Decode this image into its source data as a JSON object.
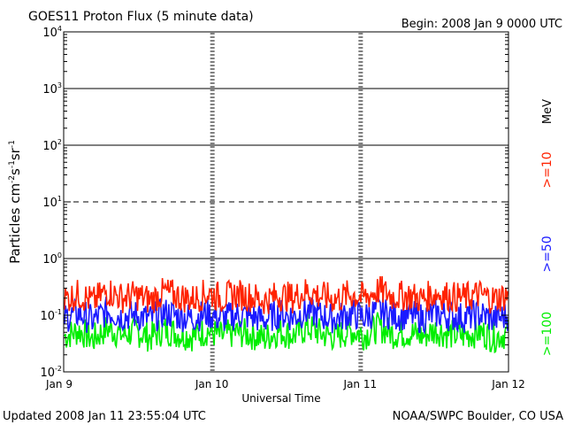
{
  "header": {
    "title": "GOES11 Proton Flux (5 minute data)",
    "begin": "Begin: 2008 Jan 9 0000 UTC"
  },
  "footer": {
    "updated": "Updated 2008 Jan 11 23:55:04 UTC",
    "credit": "NOAA/SWPC Boulder, CO USA"
  },
  "colors": {
    "ge10": "#ff2200",
    "ge50": "#1a1aff",
    "ge100": "#00ee00",
    "axis": "#000000"
  },
  "chart_data": {
    "type": "line",
    "title": "GOES11 Proton Flux (5 minute data)",
    "xlabel": "Universal Time",
    "ylabel_main": "Particles cm",
    "ylabel_parts": [
      "-2",
      "s",
      "-1",
      "sr",
      "-1"
    ],
    "yscale": "log",
    "ylim_exp": [
      -2,
      4
    ],
    "y_tick_labels": [
      {
        "exp": 4,
        "base": "10",
        "sup": "4"
      },
      {
        "exp": 3,
        "base": "10",
        "sup": "3"
      },
      {
        "exp": 2,
        "base": "10",
        "sup": "2"
      },
      {
        "exp": 1,
        "base": "10",
        "sup": "1"
      },
      {
        "exp": 0,
        "base": "10",
        "sup": "0"
      },
      {
        "exp": -1,
        "base": "10",
        "sup": "-1"
      },
      {
        "exp": -2,
        "base": "10",
        "sup": "-2"
      }
    ],
    "x_tick_labels": [
      "Jan 9",
      "Jan 10",
      "Jan 11",
      "Jan 12"
    ],
    "xlim": [
      "2008-01-09 00:00",
      "2008-01-12 00:00"
    ],
    "reference_lines": [
      {
        "value": 1000,
        "style": "solid"
      },
      {
        "value": 100,
        "style": "solid"
      },
      {
        "value": 10,
        "style": "dashed"
      },
      {
        "value": 1,
        "style": "solid"
      }
    ],
    "right_labels": {
      "unit": "MeV",
      "ge10": ">=10",
      "ge50": ">=50",
      "ge100": ">=100"
    },
    "series": [
      {
        "name": ">=10",
        "color": "#ff2200",
        "values": [
          0.18,
          0.22,
          0.16,
          0.25,
          0.19,
          0.21,
          0.17,
          0.24,
          0.2,
          0.18,
          0.23,
          0.19,
          0.22,
          0.2,
          0.17,
          0.21,
          0.19,
          0.25,
          0.2,
          0.18,
          0.22,
          0.19,
          0.26,
          0.2,
          0.21,
          0.18,
          0.23,
          0.2,
          0.19,
          0.22,
          0.18,
          0.21
        ]
      },
      {
        "name": ">=50",
        "color": "#1a1aff",
        "values": [
          0.085,
          0.1,
          0.075,
          0.11,
          0.09,
          0.095,
          0.08,
          0.105,
          0.09,
          0.085,
          0.1,
          0.08,
          0.095,
          0.09,
          0.078,
          0.1,
          0.088,
          0.11,
          0.09,
          0.082,
          0.1,
          0.087,
          0.115,
          0.09,
          0.095,
          0.083,
          0.1,
          0.09,
          0.086,
          0.098,
          0.08,
          0.092
        ]
      },
      {
        "name": ">=100",
        "color": "#00ee00",
        "values": [
          0.04,
          0.05,
          0.035,
          0.055,
          0.042,
          0.048,
          0.038,
          0.052,
          0.044,
          0.04,
          0.05,
          0.039,
          0.047,
          0.043,
          0.036,
          0.049,
          0.041,
          0.056,
          0.044,
          0.039,
          0.05,
          0.042,
          0.058,
          0.044,
          0.046,
          0.04,
          0.051,
          0.043,
          0.041,
          0.048,
          0.038,
          0.045
        ]
      }
    ]
  }
}
